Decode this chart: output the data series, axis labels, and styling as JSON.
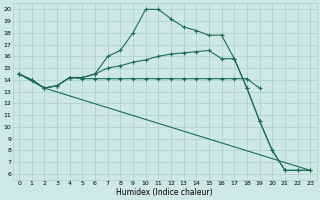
{
  "xlabel": "Humidex (Indice chaleur)",
  "ylabel": "",
  "xlim": [
    -0.5,
    23.5
  ],
  "ylim": [
    5.5,
    20.5
  ],
  "xticks": [
    0,
    1,
    2,
    3,
    4,
    5,
    6,
    7,
    8,
    9,
    10,
    11,
    12,
    13,
    14,
    15,
    16,
    17,
    18,
    19,
    20,
    21,
    22,
    23
  ],
  "yticks": [
    6,
    7,
    8,
    9,
    10,
    11,
    12,
    13,
    14,
    15,
    16,
    17,
    18,
    19,
    20
  ],
  "bg_color": "#cde8e5",
  "grid_color": "#aad0cc",
  "line_color": "#1a6b5a",
  "line1_x": [
    0,
    1,
    2,
    3,
    4,
    5,
    6,
    7,
    8,
    9,
    10,
    11,
    12,
    13,
    14,
    15,
    16,
    17,
    18,
    19
  ],
  "line1_y": [
    14.5,
    14.0,
    13.3,
    13.5,
    14.2,
    14.1,
    14.1,
    14.1,
    14.1,
    14.1,
    14.1,
    14.1,
    14.1,
    14.1,
    14.1,
    14.1,
    14.1,
    14.1,
    14.1,
    13.3
  ],
  "line2_x": [
    0,
    1,
    2,
    3,
    4,
    5,
    6,
    7,
    8,
    9,
    10,
    11,
    12,
    13,
    14,
    15,
    16,
    17,
    18,
    19,
    20,
    21,
    22,
    23
  ],
  "line2_y": [
    14.5,
    14.0,
    13.3,
    13.5,
    14.2,
    14.2,
    14.5,
    16.0,
    16.5,
    18.0,
    20.0,
    20.0,
    19.2,
    18.5,
    18.2,
    17.8,
    17.8,
    15.8,
    13.3,
    10.5,
    8.0,
    6.3,
    6.3,
    6.3
  ],
  "line3_x": [
    0,
    1,
    2,
    3,
    4,
    5,
    6,
    7,
    8,
    9,
    10,
    11,
    12,
    13,
    14,
    15,
    16,
    17,
    18,
    19,
    20,
    21,
    22,
    23
  ],
  "line3_y": [
    14.5,
    14.0,
    13.3,
    13.5,
    14.2,
    14.2,
    14.5,
    15.0,
    15.2,
    15.5,
    15.7,
    16.0,
    16.2,
    16.3,
    16.4,
    16.5,
    15.8,
    15.8,
    13.3,
    10.5,
    8.0,
    6.3,
    6.3,
    6.3
  ],
  "line4_x": [
    0,
    2,
    23
  ],
  "line4_y": [
    14.5,
    13.3,
    6.3
  ]
}
